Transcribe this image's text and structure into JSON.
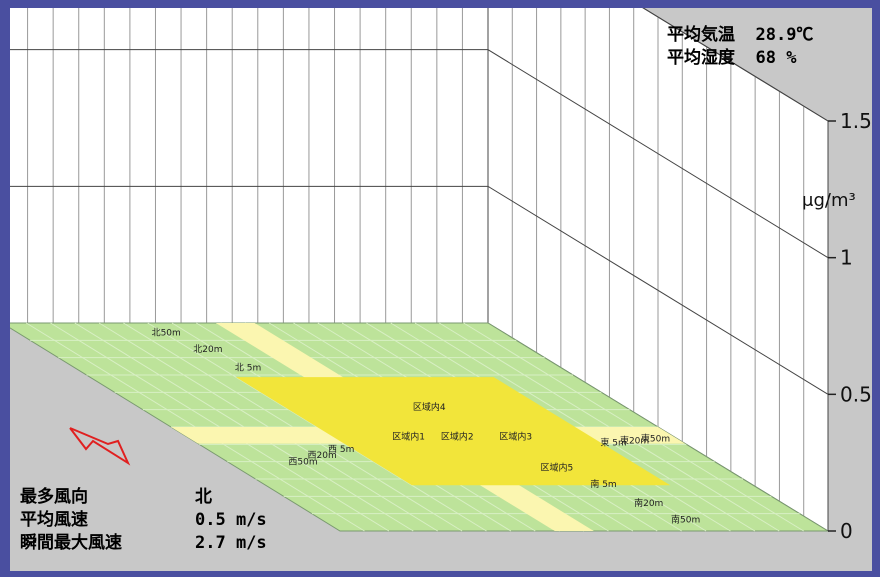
{
  "climate": {
    "temp_label": "平均気温",
    "temp_value": "28.9℃",
    "humidity_label": "平均湿度",
    "humidity_value": "68 %"
  },
  "wind": {
    "direction_label": "最多風向",
    "direction_value": "北",
    "speed_label": "平均風速",
    "speed_value": "0.5 m/s",
    "gust_label": "瞬間最大風速",
    "gust_value": "2.7 m/s"
  },
  "chart_data": {
    "type": "bar",
    "unit": "μg/m³",
    "zlim": [
      0,
      1.5
    ],
    "z_ticks": [
      "0",
      "0.5",
      "1",
      "1.5"
    ],
    "grid": true,
    "categories": [
      "区域内1",
      "区域内2",
      "区域内3",
      "区域内4",
      "区域内5",
      "北 5m",
      "北20m",
      "北50m",
      "西 5m",
      "西20m",
      "西50m",
      "東 5m",
      "東20m",
      "東50m",
      "南 5m",
      "南20m",
      "南50m"
    ],
    "values": [
      0,
      0,
      0,
      0,
      0,
      0,
      0,
      0,
      0,
      0,
      0,
      0,
      0,
      0,
      0,
      0,
      0
    ]
  },
  "colors": {
    "area_inner": "#f2e53a",
    "area_ring": "#fbf6b0",
    "ground": "#bde39a",
    "arrow": "#e02020"
  }
}
